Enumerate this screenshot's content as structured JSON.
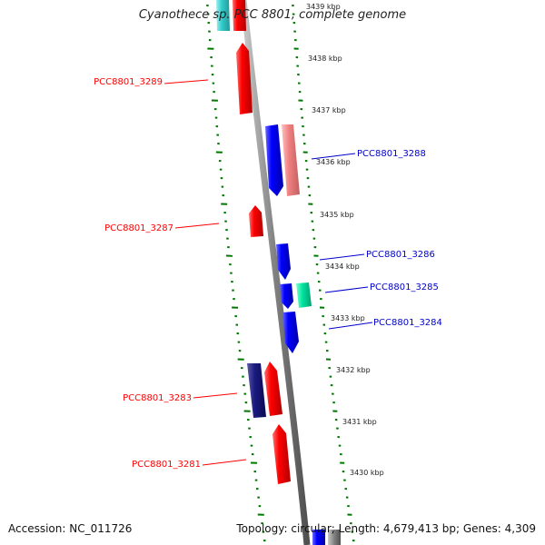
{
  "title": "Cyanothece sp. PCC 8801, complete genome",
  "footer": {
    "accession": "Accession: NC_011726",
    "summary": "Topology: circular; Length: 4,679,413 bp; Genes: 4,309"
  },
  "ticks": [
    "3439 kbp",
    "3438 kbp",
    "3437 kbp",
    "3436 kbp",
    "3435 kbp",
    "3434 kbp",
    "3433 kbp",
    "3432 kbp",
    "3431 kbp",
    "3430 kbp"
  ],
  "colors": {
    "forward_gene": "#ff0000",
    "forward_gene_light": "#f08080",
    "reverse_gene": "#0000ff",
    "reverse_gene_dark": "#1a1a80",
    "rna_gene": "#00e5a0",
    "other_gene": "#33cccc",
    "backbone": "#808080",
    "dotted_ring": "#007700"
  },
  "genes": [
    {
      "name": "PCC8801_3289",
      "strand": "forward"
    },
    {
      "name": "PCC8801_3288",
      "strand": "reverse"
    },
    {
      "name": "PCC8801_3287",
      "strand": "forward"
    },
    {
      "name": "PCC8801_3286",
      "strand": "reverse"
    },
    {
      "name": "PCC8801_3285",
      "strand": "reverse"
    },
    {
      "name": "PCC8801_3284",
      "strand": "reverse"
    },
    {
      "name": "PCC8801_3283",
      "strand": "forward"
    },
    {
      "name": "PCC8801_3281",
      "strand": "forward"
    }
  ]
}
